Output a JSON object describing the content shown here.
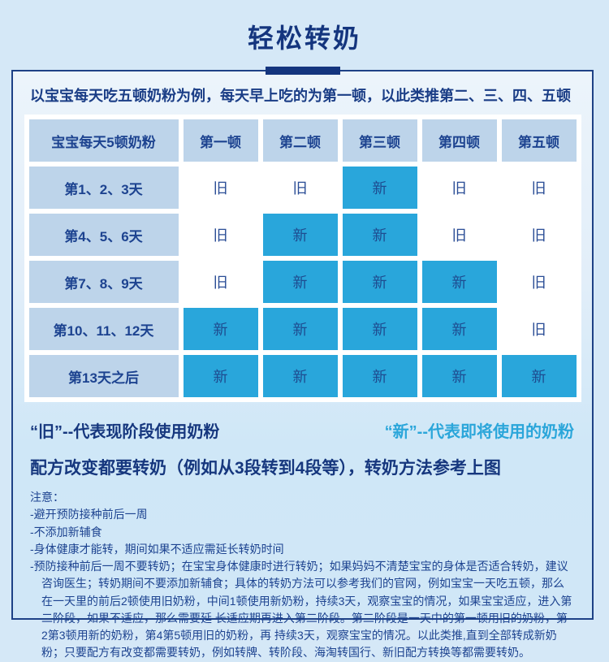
{
  "title": "轻松转奶",
  "colors": {
    "page_bg": "#d5e8f7",
    "accent_navy": "#14357e",
    "new_cell_blue": "#29a6db",
    "header_cell_bg": "#bdd4ea",
    "card_border": "#1e4186"
  },
  "card": {
    "intro": "以宝宝每天吃五顿奶粉为例，每天早上吃的为第一顿，以此类推第二、三、四、五顿",
    "table": {
      "header": [
        "宝宝每天5顿奶粉",
        "第一顿",
        "第二顿",
        "第三顿",
        "第四顿",
        "第五顿"
      ],
      "rows": [
        {
          "label": "第1、2、3天",
          "cells": [
            "旧",
            "旧",
            "新",
            "旧",
            "旧"
          ]
        },
        {
          "label": "第4、5、6天",
          "cells": [
            "旧",
            "新",
            "新",
            "旧",
            "旧"
          ]
        },
        {
          "label": "第7、8、9天",
          "cells": [
            "旧",
            "新",
            "新",
            "新",
            "旧"
          ]
        },
        {
          "label": "第10、11、12天",
          "cells": [
            "新",
            "新",
            "新",
            "新",
            "旧"
          ]
        },
        {
          "label": "第13天之后",
          "cells": [
            "新",
            "新",
            "新",
            "新",
            "新"
          ]
        }
      ],
      "old_value": "旧",
      "new_value": "新"
    },
    "legend": {
      "old_label": "“旧”--代表现阶段使用奶粉",
      "new_label": "“新”--代表即将使用的奶粉"
    },
    "formula_note": "配方改变都要转奶（例如从3段转到4段等），转奶方法参考上图",
    "notes": {
      "title": "注意：",
      "items": [
        "-避开预防接种前后一周",
        "-不添加新辅食",
        "-身体健康才能转，期间如果不适应需延长转奶时间",
        "-预防接种前后一周不要转奶；在宝宝身体健康时进行转奶；如果妈妈不清楚宝宝的身体是否适合转奶，建议咨询医生；转奶期间不要添加新辅食；具体的转奶方法可以参考我们的官网，例如宝宝一天吃五顿，那么在一天里的前后2顿使用旧奶粉，中间1顿使用新奶粉，持续3天，观察宝宝的情况，如果宝宝适应，进入第二阶段，如果不适应，那么需要延 长适应期再进入第二阶段。第二阶段是一天中的第一顿用旧的奶粉，第2第3顿用新的奶粉，第4第5顿用旧的奶粉，再 持续3天，观察宝宝的情况。以此类推,直到全部转成新奶粉；只要配方有改变都需要转奶，例如转牌、转阶段、海淘转国行、新旧配方转换等都需要转奶。"
      ]
    }
  }
}
